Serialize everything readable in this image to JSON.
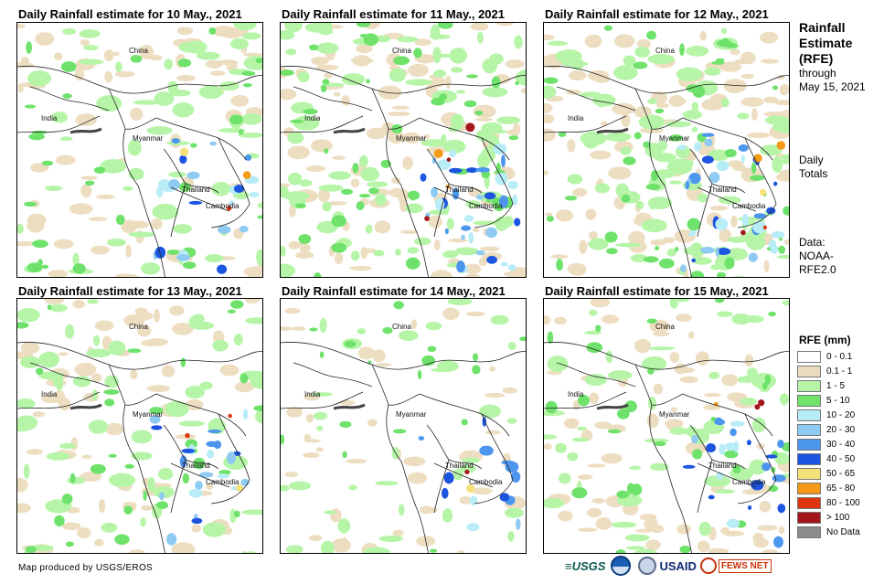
{
  "panels": [
    {
      "title": "Daily Rainfall estimate for 10 May., 2021",
      "labels": {
        "china": "China",
        "india": "India",
        "myanmar": "Myanmar",
        "thailand": "Thailand",
        "cambodia": "Cambodia"
      },
      "rain_level": "moderate"
    },
    {
      "title": "Daily Rainfall estimate for 11 May., 2021",
      "labels": {
        "china": "China",
        "india": "India",
        "myanmar": "Myanmar",
        "thailand": "Thailand",
        "cambodia": "Cambodia"
      },
      "rain_level": "heavy"
    },
    {
      "title": "Daily Rainfall estimate for 12 May., 2021",
      "labels": {
        "china": "China",
        "india": "India",
        "myanmar": "Myanmar",
        "thailand": "Thailand",
        "cambodia": "Cambodia"
      },
      "rain_level": "heavy"
    },
    {
      "title": "Daily Rainfall estimate for 13 May., 2021",
      "labels": {
        "china": "China",
        "india": "India",
        "myanmar": "Myanmar",
        "thailand": "Thailand",
        "cambodia": "Cambodia"
      },
      "rain_level": "moderate"
    },
    {
      "title": "Daily Rainfall estimate for 14 May., 2021",
      "labels": {
        "china": "China",
        "india": "India",
        "myanmar": "Myanmar",
        "thailand": "Thailand",
        "cambodia": "Cambodia"
      },
      "rain_level": "light"
    },
    {
      "title": "Daily Rainfall estimate for 15 May., 2021",
      "labels": {
        "china": "China",
        "india": "India",
        "myanmar": "Myanmar",
        "thailand": "Thailand",
        "cambodia": "Cambodia"
      },
      "rain_level": "moderate"
    }
  ],
  "sidebar": {
    "title_line1": "Rainfall",
    "title_line2": "Estimate",
    "title_line3": "(RFE)",
    "through": "through",
    "through_date": "May 15, 2021",
    "totals_line1": "Daily",
    "totals_line2": "Totals",
    "data_line1": "Data:",
    "data_line2": "NOAA-",
    "data_line3": "RFE2.0"
  },
  "legend": {
    "title": "RFE (mm)",
    "items": [
      {
        "label": "0 - 0.1",
        "color": "#ffffff"
      },
      {
        "label": "0.1 - 1",
        "color": "#ecdcbf"
      },
      {
        "label": "1 - 5",
        "color": "#b6f5a8"
      },
      {
        "label": "5 - 10",
        "color": "#6ee26a"
      },
      {
        "label": "10 - 20",
        "color": "#b8ecf7"
      },
      {
        "label": "20 - 30",
        "color": "#8ecaf2"
      },
      {
        "label": "30 - 40",
        "color": "#4d96ee"
      },
      {
        "label": "40 - 50",
        "color": "#1c55e0"
      },
      {
        "label": "50 - 65",
        "color": "#f6e27a"
      },
      {
        "label": "65 - 80",
        "color": "#f59a16"
      },
      {
        "label": "80 - 100",
        "color": "#e0360f"
      },
      {
        "label": "> 100",
        "color": "#a5161a"
      },
      {
        "label": "No Data",
        "color": "#8c8c8c"
      }
    ]
  },
  "footer": {
    "credit": "Map produced by USGS/EROS",
    "usgs": "≡USGS",
    "usaid": "USAID",
    "fewsnet": "FEWS NET"
  }
}
